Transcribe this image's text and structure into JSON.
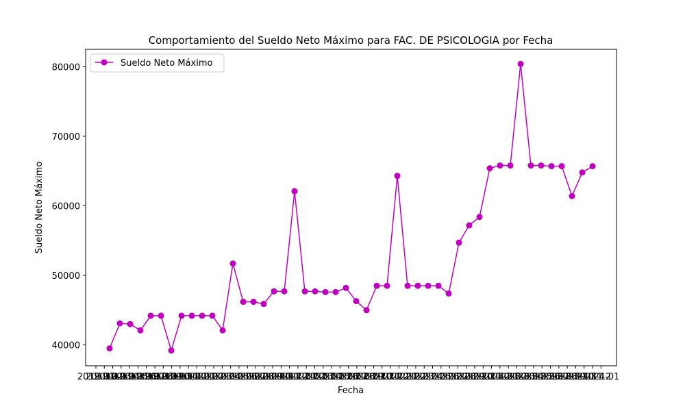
{
  "chart_data": {
    "type": "line",
    "title": "Comportamiento del Sueldo Neto Máximo para FAC. DE PSICOLOGIA por Fecha",
    "xlabel": "Fecha",
    "ylabel": "Sueldo Neto Máximo",
    "ylim": [
      37000,
      82500
    ],
    "yticks": [
      40000,
      50000,
      60000,
      70000,
      80000
    ],
    "legend": {
      "position": "top-left",
      "entries": [
        "Sueldo Neto Máximo"
      ]
    },
    "grid": false,
    "series": [
      {
        "name": "Sueldo Neto Máximo",
        "color": "#bf00bf",
        "values": [
          39500,
          43100,
          43000,
          42100,
          44200,
          44200,
          39200,
          44200,
          44200,
          44200,
          44200,
          42100,
          51700,
          46200,
          46200,
          45900,
          47700,
          47700,
          62100,
          47700,
          47700,
          47600,
          47600,
          48200,
          46300,
          45000,
          48500,
          48500,
          64300,
          48500,
          48500,
          48500,
          48500,
          47400,
          54700,
          57200,
          58400,
          65400,
          65800,
          65800,
          80400,
          65800,
          65800,
          65700,
          65700,
          61400,
          64800,
          65700
        ]
      }
    ],
    "x_tick_labels": [
      "2019-01",
      "2019-02",
      "2019-03",
      "2019-04",
      "2019-05",
      "2019-06",
      "2019-07",
      "2019-08",
      "2019-09",
      "2019-10",
      "2019-11",
      "2019-12",
      "2020-01",
      "2020-02",
      "2020-03",
      "2020-04",
      "2020-05",
      "2020-06",
      "2020-07",
      "2020-08",
      "2020-09",
      "2020-10",
      "2020-11",
      "2020-12",
      "2021-01",
      "2021-02",
      "2021-03",
      "2021-04",
      "2021-05",
      "2021-06",
      "2021-07",
      "2021-08",
      "2021-09",
      "2021-10",
      "2021-11",
      "2021-12",
      "2022-01",
      "2022-02",
      "2022-03",
      "2022-04",
      "2022-05",
      "2022-06",
      "2022-07",
      "2022-08",
      "2022-09",
      "2022-10",
      "2022-11",
      "2022-12",
      "2023-01",
      "2023-02",
      "2023-03",
      "2023-04",
      "2023-05",
      "2023-06",
      "2023-07",
      "2023-08",
      "2023-09",
      "2023-10",
      "2023-11",
      "2023-12",
      "2024-01"
    ],
    "x_tick_count": 61,
    "point_count": 48
  }
}
